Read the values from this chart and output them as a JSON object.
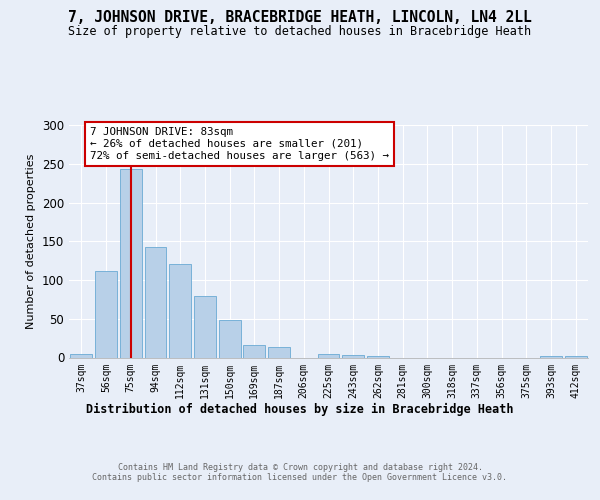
{
  "title": "7, JOHNSON DRIVE, BRACEBRIDGE HEATH, LINCOLN, LN4 2LL",
  "subtitle": "Size of property relative to detached houses in Bracebridge Heath",
  "xlabel": "Distribution of detached houses by size in Bracebridge Heath",
  "ylabel": "Number of detached properties",
  "bin_labels": [
    "37sqm",
    "56sqm",
    "75sqm",
    "94sqm",
    "112sqm",
    "131sqm",
    "150sqm",
    "169sqm",
    "187sqm",
    "206sqm",
    "225sqm",
    "243sqm",
    "262sqm",
    "281sqm",
    "300sqm",
    "318sqm",
    "337sqm",
    "356sqm",
    "375sqm",
    "393sqm",
    "412sqm"
  ],
  "bar_values": [
    5,
    111,
    243,
    143,
    121,
    79,
    48,
    16,
    13,
    0,
    4,
    3,
    2,
    0,
    0,
    0,
    0,
    0,
    0,
    2,
    2
  ],
  "bar_color": "#b8d0e8",
  "bar_edge_color": "#6aaad4",
  "vline_color": "#cc0000",
  "annotation_text": "7 JOHNSON DRIVE: 83sqm\n← 26% of detached houses are smaller (201)\n72% of semi-detached houses are larger (563) →",
  "annotation_box_color": "#ffffff",
  "annotation_box_edge_color": "#cc0000",
  "ylim": [
    0,
    300
  ],
  "yticks": [
    0,
    50,
    100,
    150,
    200,
    250,
    300
  ],
  "footer_text": "Contains HM Land Registry data © Crown copyright and database right 2024.\nContains public sector information licensed under the Open Government Licence v3.0.",
  "bg_color": "#e8eef8",
  "plot_bg_color": "#e8eef8"
}
